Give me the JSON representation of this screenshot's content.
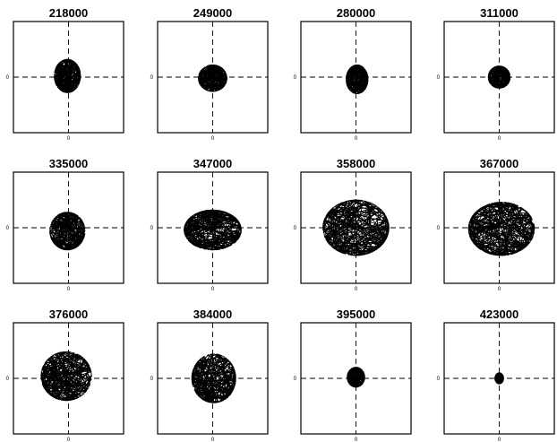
{
  "chart_data": [
    {
      "type": "line",
      "title": "218000",
      "xtick": "0",
      "ytick": "0",
      "spread_x": 0.12,
      "spread_y": 0.15,
      "offset_x": -0.01,
      "offset_y": 0.01,
      "grid": false
    },
    {
      "type": "line",
      "title": "249000",
      "xtick": "0",
      "ytick": "0",
      "spread_x": 0.13,
      "spread_y": 0.12,
      "offset_x": 0.0,
      "offset_y": -0.01,
      "grid": false
    },
    {
      "type": "line",
      "title": "280000",
      "xtick": "0",
      "ytick": "0",
      "spread_x": 0.1,
      "spread_y": 0.13,
      "offset_x": 0.01,
      "offset_y": -0.02,
      "grid": false
    },
    {
      "type": "line",
      "title": "311000",
      "xtick": "0",
      "ytick": "0",
      "spread_x": 0.1,
      "spread_y": 0.1,
      "offset_x": 0.0,
      "offset_y": 0.0,
      "grid": false
    },
    {
      "type": "line",
      "title": "335000",
      "xtick": "0",
      "ytick": "0",
      "spread_x": 0.16,
      "spread_y": 0.17,
      "offset_x": -0.01,
      "offset_y": -0.03,
      "grid": false
    },
    {
      "type": "line",
      "title": "347000",
      "xtick": "0",
      "ytick": "0",
      "spread_x": 0.26,
      "spread_y": 0.18,
      "offset_x": 0.0,
      "offset_y": -0.02,
      "grid": false
    },
    {
      "type": "line",
      "title": "358000",
      "xtick": "0",
      "ytick": "0",
      "spread_x": 0.3,
      "spread_y": 0.25,
      "offset_x": 0.0,
      "offset_y": 0.0,
      "grid": false
    },
    {
      "type": "line",
      "title": "367000",
      "xtick": "0",
      "ytick": "0",
      "spread_x": 0.3,
      "spread_y": 0.24,
      "offset_x": 0.02,
      "offset_y": -0.01,
      "grid": false
    },
    {
      "type": "line",
      "title": "376000",
      "xtick": "0",
      "ytick": "0",
      "spread_x": 0.23,
      "spread_y": 0.22,
      "offset_x": -0.02,
      "offset_y": 0.02,
      "grid": false
    },
    {
      "type": "line",
      "title": "384000",
      "xtick": "0",
      "ytick": "0",
      "spread_x": 0.2,
      "spread_y": 0.22,
      "offset_x": 0.01,
      "offset_y": 0.0,
      "grid": false
    },
    {
      "type": "line",
      "title": "395000",
      "xtick": "0",
      "ytick": "0",
      "spread_x": 0.08,
      "spread_y": 0.09,
      "offset_x": 0.0,
      "offset_y": 0.01,
      "grid": false
    },
    {
      "type": "line",
      "title": "423000",
      "xtick": "0",
      "ytick": "0",
      "spread_x": 0.04,
      "spread_y": 0.05,
      "offset_x": 0.0,
      "offset_y": 0.0,
      "grid": false
    }
  ]
}
